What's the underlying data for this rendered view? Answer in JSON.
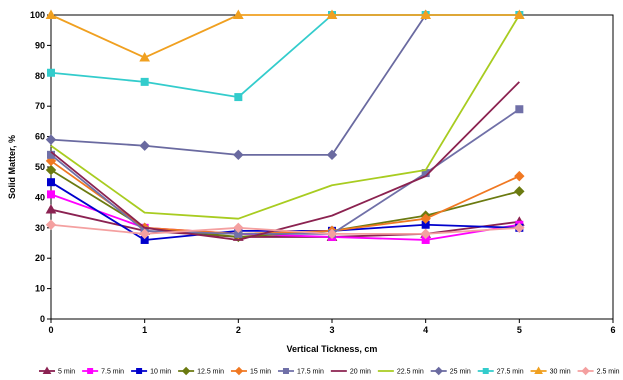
{
  "chart_data": {
    "type": "line",
    "title": "",
    "xlabel": "Vertical Tickness, cm",
    "ylabel": "Solid Matter, %",
    "xlim": [
      0,
      6
    ],
    "ylim": [
      0,
      100
    ],
    "x_ticks": [
      0,
      1,
      2,
      3,
      4,
      5,
      6
    ],
    "y_ticks": [
      0,
      10,
      20,
      30,
      40,
      50,
      60,
      70,
      80,
      90,
      100
    ],
    "x": [
      0,
      1,
      2,
      3,
      4,
      5
    ],
    "grid": false,
    "legend_position": "bottom",
    "series": [
      {
        "name": "5 min",
        "color": "#8B2252",
        "marker": "triangle",
        "values": [
          36,
          29,
          27,
          27,
          28,
          32
        ]
      },
      {
        "name": "7.5 min",
        "color": "#FF00FF",
        "marker": "square",
        "values": [
          41,
          30,
          28,
          27,
          26,
          31
        ]
      },
      {
        "name": "10 min",
        "color": "#0000CC",
        "marker": "square",
        "values": [
          45,
          26,
          29,
          29,
          31,
          30
        ]
      },
      {
        "name": "12.5 min",
        "color": "#6B7A10",
        "marker": "diamond",
        "values": [
          49,
          30,
          27,
          29,
          34,
          42
        ]
      },
      {
        "name": "15 min",
        "color": "#F07822",
        "marker": "diamond",
        "values": [
          52,
          30,
          28,
          29,
          33,
          47
        ]
      },
      {
        "name": "17.5 min",
        "color": "#7070A8",
        "marker": "square",
        "values": [
          54,
          29,
          28,
          28,
          48,
          69
        ]
      },
      {
        "name": "20 min",
        "color": "#8B2250",
        "marker": "none",
        "values": [
          55,
          30,
          26,
          34,
          47,
          78
        ]
      },
      {
        "name": "22.5 min",
        "color": "#A8CC20",
        "marker": "none",
        "values": [
          57,
          35,
          33,
          44,
          49,
          100
        ]
      },
      {
        "name": "25 min",
        "color": "#6A6AA0",
        "marker": "diamond",
        "values": [
          59,
          57,
          54,
          54,
          100,
          null
        ]
      },
      {
        "name": "27.5 min",
        "color": "#33CCCC",
        "marker": "square",
        "values": [
          81,
          78,
          73,
          100,
          100,
          100
        ]
      },
      {
        "name": "30 min",
        "color": "#F0A020",
        "marker": "triangle",
        "values": [
          100,
          86,
          100,
          100,
          100,
          100
        ]
      },
      {
        "name": "2.5 min",
        "color": "#F4A0A0",
        "marker": "diamond",
        "values": [
          31,
          28,
          30,
          28,
          28,
          30
        ]
      }
    ]
  }
}
